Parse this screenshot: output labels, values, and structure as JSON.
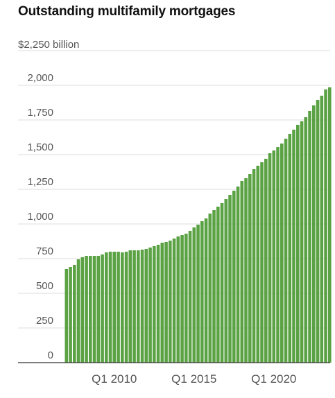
{
  "chart_data": {
    "type": "bar",
    "title": "Outstanding multifamily mortgages",
    "unit_label": "$2,250 billion",
    "xlabel": "",
    "ylabel": "",
    "ylim": [
      0,
      2250
    ],
    "y_ticks": [
      0,
      250,
      500,
      750,
      1000,
      1250,
      1500,
      1750,
      2000
    ],
    "y_tick_labels": [
      "0",
      "250",
      "500",
      "750",
      "1,000",
      "1,250",
      "1,500",
      "1,750",
      "2,000"
    ],
    "x_ticks": [
      {
        "label": "Q1 2010",
        "index": 12
      },
      {
        "label": "Q1 2015",
        "index": 32
      },
      {
        "label": "Q1 2020",
        "index": 52
      }
    ],
    "grid": true,
    "color": "#5aa243",
    "categories": [
      "Q1 2007",
      "Q2 2007",
      "Q3 2007",
      "Q4 2007",
      "Q1 2008",
      "Q2 2008",
      "Q3 2008",
      "Q4 2008",
      "Q1 2009",
      "Q2 2009",
      "Q3 2009",
      "Q4 2009",
      "Q1 2010",
      "Q2 2010",
      "Q3 2010",
      "Q4 2010",
      "Q1 2011",
      "Q2 2011",
      "Q3 2011",
      "Q4 2011",
      "Q1 2012",
      "Q2 2012",
      "Q3 2012",
      "Q4 2012",
      "Q1 2013",
      "Q2 2013",
      "Q3 2013",
      "Q4 2013",
      "Q1 2014",
      "Q2 2014",
      "Q3 2014",
      "Q4 2014",
      "Q1 2015",
      "Q2 2015",
      "Q3 2015",
      "Q4 2015",
      "Q1 2016",
      "Q2 2016",
      "Q3 2016",
      "Q4 2016",
      "Q1 2017",
      "Q2 2017",
      "Q3 2017",
      "Q4 2017",
      "Q1 2018",
      "Q2 2018",
      "Q3 2018",
      "Q4 2018",
      "Q1 2019",
      "Q2 2019",
      "Q3 2019",
      "Q4 2019",
      "Q1 2020",
      "Q2 2020",
      "Q3 2020",
      "Q4 2020",
      "Q1 2021",
      "Q2 2021",
      "Q3 2021",
      "Q4 2021",
      "Q1 2022",
      "Q2 2022",
      "Q3 2022",
      "Q4 2022",
      "Q1 2023",
      "Q2 2023",
      "Q3 2023"
    ],
    "values": [
      675,
      690,
      705,
      745,
      760,
      770,
      770,
      770,
      770,
      780,
      795,
      800,
      800,
      800,
      795,
      800,
      810,
      810,
      810,
      815,
      820,
      830,
      840,
      850,
      865,
      870,
      880,
      895,
      910,
      920,
      930,
      950,
      975,
      995,
      1020,
      1040,
      1075,
      1100,
      1125,
      1150,
      1180,
      1210,
      1240,
      1270,
      1310,
      1330,
      1360,
      1395,
      1420,
      1445,
      1470,
      1510,
      1530,
      1555,
      1580,
      1615,
      1650,
      1680,
      1715,
      1740,
      1770,
      1815,
      1855,
      1895,
      1925,
      1970,
      1985
    ]
  }
}
